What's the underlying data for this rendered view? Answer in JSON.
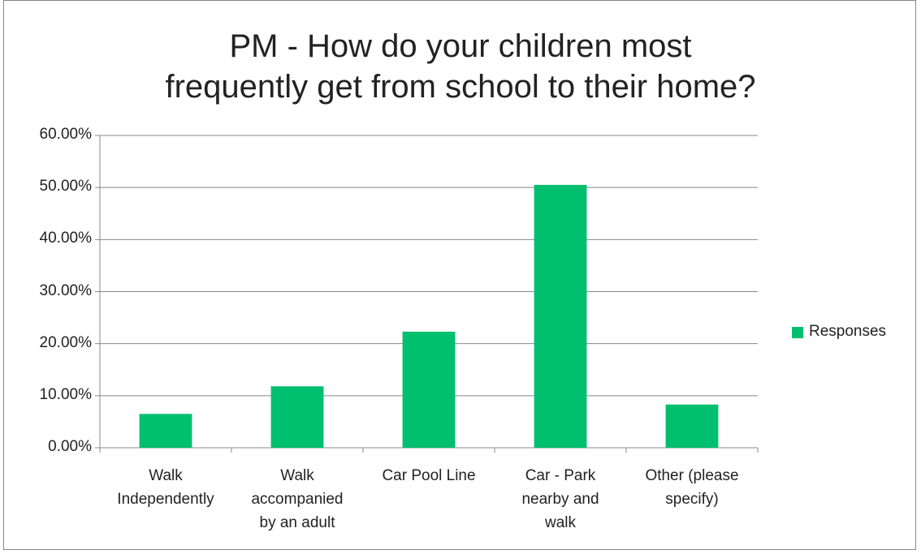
{
  "chart_data": {
    "type": "bar",
    "title": "PM - How do your children most\nfrequently get from school to their home?",
    "categories": [
      "Walk Independently",
      "Walk accompanied by an adult",
      "Car Pool Line",
      "Car - Park nearby and walk",
      "Other (please specify)"
    ],
    "series": [
      {
        "name": "Responses",
        "color": "#00bf6f",
        "values": [
          6.5,
          11.8,
          22.3,
          50.5,
          8.3
        ]
      }
    ],
    "ylim": [
      0,
      60
    ],
    "yticks": [
      {
        "value": 0,
        "label": "0.00%"
      },
      {
        "value": 10,
        "label": "10.00%"
      },
      {
        "value": 20,
        "label": "20.00%"
      },
      {
        "value": 30,
        "label": "30.00%"
      },
      {
        "value": 40,
        "label": "40.00%"
      },
      {
        "value": 50,
        "label": "50.00%"
      },
      {
        "value": 60,
        "label": "60.00%"
      }
    ],
    "grid": true,
    "legend": "right"
  }
}
